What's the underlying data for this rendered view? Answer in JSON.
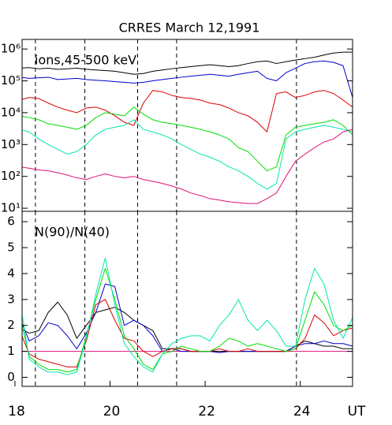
{
  "chart_data": [
    {
      "type": "line",
      "title": "CRRES   March 12,1991",
      "label": "ions,45-500 keV",
      "log_scale": true,
      "xlim": [
        18.15,
        25.1
      ],
      "ylim": [
        8,
        2000000
      ],
      "yticks": [
        {
          "value": 10,
          "label": "10¹"
        },
        {
          "value": 100,
          "label": "10²"
        },
        {
          "value": 1000,
          "label": "10³"
        },
        {
          "value": 10000,
          "label": "10⁴"
        },
        {
          "value": 100000,
          "label": "10⁵"
        },
        {
          "value": 1000000,
          "label": "10⁶"
        }
      ],
      "vlines": [
        18.43,
        19.47,
        20.58,
        21.4,
        23.92
      ],
      "x": [
        18.1,
        18.3,
        18.5,
        18.7,
        18.9,
        19.1,
        19.3,
        19.5,
        19.7,
        19.9,
        20.1,
        20.3,
        20.5,
        20.7,
        20.9,
        21.1,
        21.3,
        21.5,
        21.7,
        21.9,
        22.1,
        22.3,
        22.5,
        22.7,
        22.9,
        23.1,
        23.3,
        23.5,
        23.7,
        23.9,
        24.1,
        24.3,
        24.5,
        24.7,
        24.9,
        25.1
      ],
      "series": [
        {
          "color": "#000000",
          "values": [
            250000,
            260000,
            240000,
            250000,
            230000,
            240000,
            250000,
            230000,
            220000,
            210000,
            200000,
            180000,
            160000,
            170000,
            200000,
            220000,
            240000,
            260000,
            280000,
            300000,
            320000,
            300000,
            280000,
            300000,
            350000,
            400000,
            420000,
            350000,
            400000,
            450000,
            500000,
            550000,
            650000,
            750000,
            800000,
            800000
          ]
        },
        {
          "color": "#0000cc",
          "values": [
            130000,
            120000,
            125000,
            130000,
            110000,
            115000,
            120000,
            110000,
            105000,
            100000,
            95000,
            90000,
            85000,
            90000,
            100000,
            110000,
            120000,
            130000,
            140000,
            150000,
            160000,
            150000,
            140000,
            160000,
            180000,
            200000,
            120000,
            100000,
            180000,
            250000,
            350000,
            400000,
            420000,
            380000,
            300000,
            30000
          ]
        },
        {
          "color": "#dd0000",
          "values": [
            25000,
            30000,
            28000,
            20000,
            15000,
            12000,
            10000,
            14000,
            15000,
            12000,
            8000,
            5000,
            4000,
            20000,
            50000,
            45000,
            35000,
            30000,
            28000,
            25000,
            20000,
            18000,
            14000,
            10000,
            8000,
            5000,
            2500,
            40000,
            45000,
            30000,
            35000,
            45000,
            50000,
            40000,
            25000,
            15000
          ]
        },
        {
          "color": "#00dd00",
          "values": [
            8000,
            7000,
            6000,
            4500,
            4000,
            3500,
            3000,
            4000,
            7000,
            10000,
            9000,
            8000,
            15000,
            9000,
            6000,
            5000,
            4500,
            4000,
            3500,
            3000,
            2500,
            2000,
            1500,
            800,
            600,
            300,
            150,
            200,
            2000,
            3500,
            4000,
            4500,
            5000,
            6000,
            4000,
            2000
          ]
        },
        {
          "color": "#00e8b0",
          "values": [
            3000,
            2500,
            1500,
            1000,
            700,
            500,
            600,
            1000,
            2000,
            3000,
            3500,
            4000,
            6000,
            3000,
            2500,
            2000,
            1500,
            1000,
            700,
            500,
            400,
            300,
            200,
            150,
            100,
            60,
            40,
            60,
            1500,
            2500,
            3000,
            3500,
            4000,
            3500,
            3000,
            2500
          ]
        },
        {
          "color": "#e0107a",
          "values": [
            200,
            180,
            160,
            150,
            130,
            110,
            90,
            80,
            100,
            120,
            100,
            90,
            100,
            80,
            70,
            60,
            50,
            40,
            30,
            25,
            20,
            18,
            16,
            15,
            14,
            14,
            20,
            30,
            100,
            300,
            500,
            800,
            1200,
            1500,
            2500,
            3000
          ]
        }
      ]
    },
    {
      "type": "line",
      "label": "N(90)/N(40)",
      "x_label": "UT",
      "xlim": [
        18.15,
        25.1
      ],
      "xticks": [
        18,
        20,
        22,
        24
      ],
      "ylim": [
        -0.35,
        6.4
      ],
      "yticks": [
        0,
        1,
        2,
        3,
        4,
        5,
        6
      ],
      "vlines": [
        18.43,
        19.47,
        20.58,
        21.4,
        23.92
      ],
      "reference": {
        "value": 1,
        "color": "#e0107a"
      },
      "x": [
        18.1,
        18.3,
        18.5,
        18.7,
        18.9,
        19.1,
        19.3,
        19.5,
        19.7,
        19.9,
        20.1,
        20.3,
        20.5,
        20.7,
        20.9,
        21.1,
        21.3,
        21.5,
        21.7,
        21.9,
        22.1,
        22.3,
        22.5,
        22.7,
        22.9,
        23.1,
        23.3,
        23.5,
        23.7,
        23.9,
        24.1,
        24.3,
        24.5,
        24.7,
        24.9,
        25.1
      ],
      "series": [
        {
          "color": "#000000",
          "values": [
            1.9,
            1.7,
            1.8,
            2.5,
            2.9,
            2.4,
            1.5,
            2.0,
            2.5,
            2.6,
            2.7,
            2.5,
            2.2,
            2.0,
            1.8,
            1.1,
            1.1,
            1.1,
            1.0,
            1.0,
            1.0,
            1.0,
            1.0,
            1.0,
            1.0,
            1.0,
            1.0,
            1.0,
            1.0,
            1.2,
            1.4,
            1.3,
            1.2,
            1.2,
            1.1,
            1.1
          ]
        },
        {
          "color": "#0000cc",
          "values": [
            2.3,
            1.4,
            1.6,
            2.1,
            2.0,
            1.6,
            1.1,
            1.7,
            2.5,
            3.6,
            3.5,
            2.0,
            2.2,
            2.0,
            1.6,
            1.0,
            1.1,
            1.0,
            1.0,
            1.0,
            1.0,
            0.95,
            1.0,
            1.0,
            1.0,
            1.0,
            1.0,
            1.0,
            1.0,
            1.2,
            1.3,
            1.3,
            1.4,
            1.3,
            1.3,
            1.2
          ]
        },
        {
          "color": "#dd0000",
          "values": [
            1.8,
            0.9,
            0.7,
            0.6,
            0.5,
            0.4,
            0.4,
            1.4,
            2.8,
            3.0,
            2.2,
            1.5,
            1.4,
            1.0,
            0.8,
            1.0,
            1.1,
            1.1,
            1.0,
            1.0,
            1.0,
            1.1,
            1.0,
            1.0,
            1.1,
            1.0,
            1.0,
            1.0,
            1.0,
            1.1,
            1.5,
            2.4,
            2.1,
            1.6,
            1.8,
            1.9
          ]
        },
        {
          "color": "#00dd00",
          "values": [
            2.4,
            0.8,
            0.5,
            0.3,
            0.3,
            0.2,
            0.3,
            1.6,
            3.0,
            4.2,
            3.0,
            1.6,
            1.1,
            0.5,
            0.3,
            0.9,
            1.0,
            1.2,
            1.1,
            1.0,
            1.0,
            1.2,
            1.5,
            1.4,
            1.2,
            1.3,
            1.2,
            1.1,
            1.0,
            1.1,
            2.2,
            3.3,
            2.8,
            2.0,
            1.8,
            2.0
          ]
        },
        {
          "color": "#00e8b0",
          "values": [
            3.0,
            0.7,
            0.4,
            0.2,
            0.2,
            0.1,
            0.2,
            1.5,
            3.2,
            4.6,
            2.8,
            1.3,
            0.8,
            0.4,
            0.2,
            0.9,
            1.3,
            1.5,
            1.6,
            1.6,
            1.4,
            2.0,
            2.4,
            3.0,
            2.2,
            1.8,
            2.2,
            1.8,
            1.2,
            1.2,
            3.0,
            4.2,
            3.6,
            2.2,
            1.5,
            2.3
          ]
        }
      ]
    }
  ]
}
